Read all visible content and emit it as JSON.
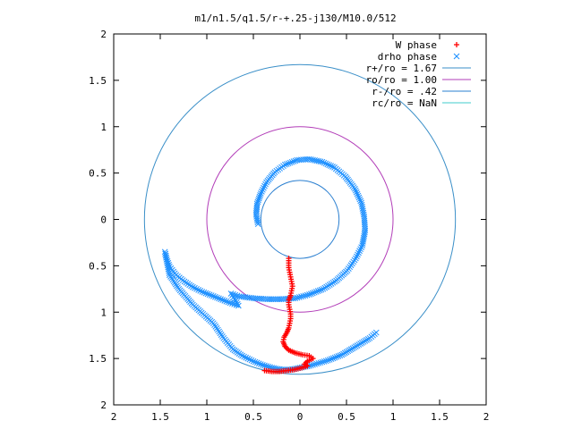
{
  "chart_data": {
    "type": "scatter",
    "title": "m1/n1.5/q1.5/r-+.25-j130/M10.0/512",
    "xlabel": "",
    "ylabel": "",
    "xlim": [
      -2,
      2
    ],
    "ylim": [
      -2,
      2
    ],
    "x_ticks": [
      -2,
      -1.5,
      -1,
      -0.5,
      0,
      0.5,
      1,
      1.5,
      2
    ],
    "y_ticks": [
      -2,
      -1.5,
      -1,
      -0.5,
      0,
      0.5,
      1,
      1.5,
      2
    ],
    "x_tick_labels": [
      "2",
      "1.5",
      "1",
      "0.5",
      "0",
      "0.5",
      "1",
      "1.5",
      "2"
    ],
    "y_tick_labels": [
      "2",
      "1.5",
      "1",
      "0.5",
      "0",
      "0.5",
      "1",
      "1.5",
      "2"
    ],
    "grid": false,
    "legend_position": "top-right",
    "series": [
      {
        "name": "W phase",
        "marker": "+",
        "color": "#ff0000",
        "points": [
          [
            -0.12,
            -0.42
          ],
          [
            -0.12,
            -0.47
          ],
          [
            -0.12,
            -0.52
          ],
          [
            -0.11,
            -0.57
          ],
          [
            -0.1,
            -0.62
          ],
          [
            -0.09,
            -0.67
          ],
          [
            -0.08,
            -0.72
          ],
          [
            -0.09,
            -0.77
          ],
          [
            -0.1,
            -0.82
          ],
          [
            -0.12,
            -0.87
          ],
          [
            -0.12,
            -0.92
          ],
          [
            -0.11,
            -0.97
          ],
          [
            -0.1,
            -1.02
          ],
          [
            -0.1,
            -1.07
          ],
          [
            -0.11,
            -1.12
          ],
          [
            -0.12,
            -1.17
          ],
          [
            -0.14,
            -1.22
          ],
          [
            -0.17,
            -1.27
          ],
          [
            -0.18,
            -1.32
          ],
          [
            -0.16,
            -1.37
          ],
          [
            -0.12,
            -1.41
          ],
          [
            -0.05,
            -1.44
          ],
          [
            0.03,
            -1.46
          ],
          [
            0.1,
            -1.47
          ],
          [
            0.14,
            -1.5
          ],
          [
            0.08,
            -1.53
          ],
          [
            0.05,
            -1.56
          ],
          [
            0.08,
            -1.58
          ],
          [
            0.02,
            -1.6
          ],
          [
            -0.06,
            -1.62
          ],
          [
            -0.14,
            -1.63
          ],
          [
            -0.22,
            -1.64
          ],
          [
            -0.3,
            -1.64
          ],
          [
            -0.38,
            -1.63
          ]
        ]
      },
      {
        "name": "drho phase",
        "marker": "x",
        "color": "#1e90ff",
        "points": [
          [
            -0.45,
            -0.05
          ],
          [
            -0.47,
            0.05
          ],
          [
            -0.46,
            0.17
          ],
          [
            -0.42,
            0.28
          ],
          [
            -0.36,
            0.4
          ],
          [
            -0.27,
            0.51
          ],
          [
            -0.16,
            0.59
          ],
          [
            -0.03,
            0.64
          ],
          [
            0.1,
            0.65
          ],
          [
            0.24,
            0.62
          ],
          [
            0.37,
            0.56
          ],
          [
            0.49,
            0.46
          ],
          [
            0.59,
            0.33
          ],
          [
            0.66,
            0.18
          ],
          [
            0.69,
            0.03
          ],
          [
            0.7,
            -0.12
          ],
          [
            0.67,
            -0.28
          ],
          [
            0.6,
            -0.42
          ],
          [
            0.51,
            -0.55
          ],
          [
            0.39,
            -0.66
          ],
          [
            0.25,
            -0.75
          ],
          [
            0.1,
            -0.81
          ],
          [
            -0.05,
            -0.85
          ],
          [
            -0.2,
            -0.86
          ],
          [
            -0.35,
            -0.86
          ],
          [
            -0.5,
            -0.85
          ],
          [
            -0.65,
            -0.83
          ],
          [
            -0.74,
            -0.8
          ],
          [
            -0.7,
            -0.86
          ],
          [
            -0.66,
            -0.93
          ],
          [
            -0.75,
            -0.9
          ],
          [
            -0.85,
            -0.86
          ],
          [
            -0.95,
            -0.82
          ],
          [
            -1.05,
            -0.78
          ],
          [
            -1.15,
            -0.73
          ],
          [
            -1.24,
            -0.67
          ],
          [
            -1.33,
            -0.6
          ],
          [
            -1.4,
            -0.51
          ],
          [
            -1.43,
            -0.43
          ],
          [
            -1.45,
            -0.35
          ],
          [
            -1.4,
            -0.6
          ],
          [
            -1.3,
            -0.75
          ],
          [
            -1.15,
            -0.92
          ],
          [
            -0.93,
            -1.12
          ],
          [
            -0.82,
            -1.28
          ],
          [
            -0.72,
            -1.4
          ],
          [
            -0.62,
            -1.47
          ],
          [
            -0.5,
            -1.53
          ],
          [
            -0.4,
            -1.57
          ],
          [
            -0.3,
            -1.6
          ],
          [
            -0.2,
            -1.62
          ],
          [
            -0.1,
            -1.62
          ],
          [
            0.0,
            -1.6
          ],
          [
            0.1,
            -1.58
          ],
          [
            0.2,
            -1.55
          ],
          [
            0.3,
            -1.52
          ],
          [
            0.45,
            -1.46
          ],
          [
            0.55,
            -1.4
          ],
          [
            0.65,
            -1.34
          ],
          [
            0.75,
            -1.28
          ],
          [
            0.82,
            -1.22
          ]
        ]
      }
    ],
    "circles": [
      {
        "name": "r+/ro = 1.67",
        "radius": 1.67,
        "color": "#3a8fc8"
      },
      {
        "name": "ro/ro = 1.00",
        "radius": 1.0,
        "color": "#b23db8"
      },
      {
        "name": "r-/ro = .42",
        "radius": 0.42,
        "color": "#2a7fd0"
      },
      {
        "name": "rc/ro = NaN",
        "radius": null,
        "color": "#3fcccc"
      }
    ]
  }
}
